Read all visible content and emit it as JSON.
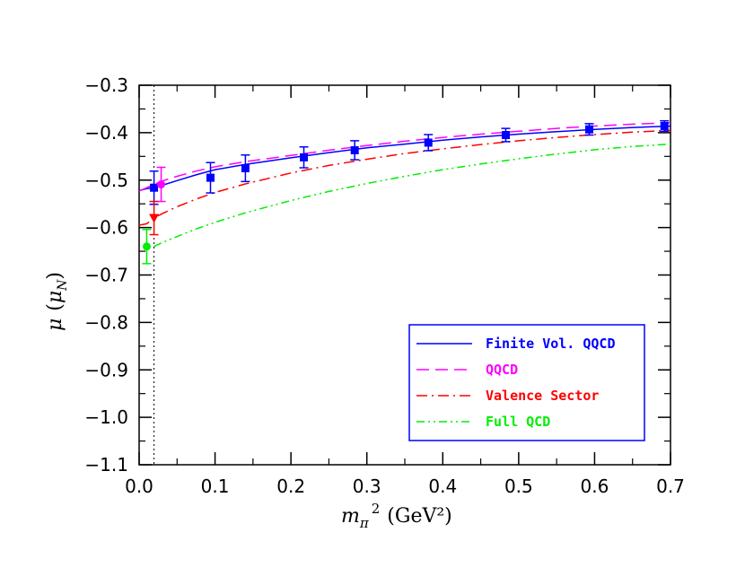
{
  "chart_data": {
    "type": "line",
    "title": "",
    "xlabel": {
      "main": "m",
      "sub": "π",
      "sup": "2",
      "unit": "(GeV²)"
    },
    "ylabel": {
      "main": "μ",
      "open": "(",
      "sym": "μ",
      "sub": "N",
      "close": ")"
    },
    "xlim": [
      0.0,
      0.7
    ],
    "ylim": [
      -1.1,
      -0.3
    ],
    "x_ticks": [
      0.0,
      0.1,
      0.2,
      0.3,
      0.4,
      0.5,
      0.6,
      0.7
    ],
    "x_tick_labels": [
      "0.0",
      "0.1",
      "0.2",
      "0.3",
      "0.4",
      "0.5",
      "0.6",
      "0.7"
    ],
    "y_ticks": [
      -1.1,
      -1.0,
      -0.9,
      -0.8,
      -0.7,
      -0.6,
      -0.5,
      -0.4,
      -0.3
    ],
    "y_tick_labels": [
      "−1.1",
      "−1.0",
      "−0.9",
      "−0.8",
      "−0.7",
      "−0.6",
      "−0.5",
      "−0.4",
      "−0.3"
    ],
    "physical_point_x": 0.0196,
    "grid": false,
    "legend_position": "bottom-right",
    "series": [
      {
        "name": "Finite Vol. QQCD",
        "color": "#0000ff",
        "dash": "solid",
        "x": [
          0.0,
          0.01,
          0.0196,
          0.03,
          0.05,
          0.075,
          0.1,
          0.14,
          0.2,
          0.25,
          0.3,
          0.35,
          0.4,
          0.45,
          0.5,
          0.55,
          0.6,
          0.65,
          0.7
        ],
        "y": [
          -0.522,
          -0.518,
          -0.516,
          -0.511,
          -0.501,
          -0.489,
          -0.478,
          -0.467,
          -0.453,
          -0.442,
          -0.432,
          -0.424,
          -0.416,
          -0.409,
          -0.403,
          -0.398,
          -0.393,
          -0.389,
          -0.386
        ]
      },
      {
        "name": "QQCD",
        "color": "#ff00ff",
        "dash": "long-dash",
        "x": [
          0.0,
          0.01,
          0.0196,
          0.03,
          0.05,
          0.075,
          0.1,
          0.14,
          0.2,
          0.25,
          0.3,
          0.35,
          0.4,
          0.45,
          0.5,
          0.55,
          0.6,
          0.65,
          0.7
        ],
        "y": [
          -0.523,
          -0.516,
          -0.509,
          -0.502,
          -0.492,
          -0.481,
          -0.472,
          -0.461,
          -0.448,
          -0.437,
          -0.427,
          -0.418,
          -0.41,
          -0.403,
          -0.397,
          -0.391,
          -0.386,
          -0.382,
          -0.379
        ]
      },
      {
        "name": "Valence Sector",
        "color": "#ff0000",
        "dash": "dash-dot",
        "x": [
          0.0,
          0.01,
          0.0196,
          0.03,
          0.05,
          0.075,
          0.1,
          0.14,
          0.2,
          0.25,
          0.3,
          0.35,
          0.4,
          0.45,
          0.5,
          0.55,
          0.6,
          0.65,
          0.7
        ],
        "y": [
          -0.595,
          -0.592,
          -0.58,
          -0.571,
          -0.556,
          -0.54,
          -0.526,
          -0.508,
          -0.485,
          -0.469,
          -0.456,
          -0.444,
          -0.434,
          -0.425,
          -0.417,
          -0.41,
          -0.404,
          -0.399,
          -0.395
        ]
      },
      {
        "name": "Full QCD",
        "color": "#00ee00",
        "dash": "dash-dot-dot",
        "x": [
          0.0196,
          0.03,
          0.05,
          0.075,
          0.1,
          0.14,
          0.2,
          0.25,
          0.3,
          0.35,
          0.4,
          0.45,
          0.5,
          0.55,
          0.6,
          0.65,
          0.7
        ],
        "y": [
          -0.64,
          -0.632,
          -0.619,
          -0.603,
          -0.589,
          -0.569,
          -0.543,
          -0.524,
          -0.507,
          -0.492,
          -0.478,
          -0.466,
          -0.455,
          -0.445,
          -0.436,
          -0.429,
          -0.424
        ]
      }
    ],
    "points": [
      {
        "series": "Finite Vol. QQCD",
        "marker": "square",
        "color": "#0000ff",
        "data": [
          {
            "x": 0.0196,
            "y": -0.516,
            "err": 0.035
          },
          {
            "x": 0.094,
            "y": -0.495,
            "err": 0.032
          },
          {
            "x": 0.14,
            "y": -0.475,
            "err": 0.028
          },
          {
            "x": 0.217,
            "y": -0.452,
            "err": 0.022
          },
          {
            "x": 0.284,
            "y": -0.437,
            "err": 0.02
          },
          {
            "x": 0.381,
            "y": -0.421,
            "err": 0.017
          },
          {
            "x": 0.483,
            "y": -0.405,
            "err": 0.014
          },
          {
            "x": 0.593,
            "y": -0.393,
            "err": 0.012
          },
          {
            "x": 0.692,
            "y": -0.386,
            "err": 0.011
          }
        ]
      },
      {
        "series": "QQCD",
        "marker": "circle",
        "color": "#ff00ff",
        "data": [
          {
            "x": 0.029,
            "y": -0.509,
            "err": 0.036
          }
        ]
      },
      {
        "series": "Valence Sector",
        "marker": "triangle-down",
        "color": "#ff0000",
        "data": [
          {
            "x": 0.0196,
            "y": -0.58,
            "err": 0.035
          }
        ]
      },
      {
        "series": "Full QCD",
        "marker": "circle",
        "color": "#00ee00",
        "data": [
          {
            "x": 0.01,
            "y": -0.64,
            "err": 0.036
          }
        ]
      }
    ]
  }
}
